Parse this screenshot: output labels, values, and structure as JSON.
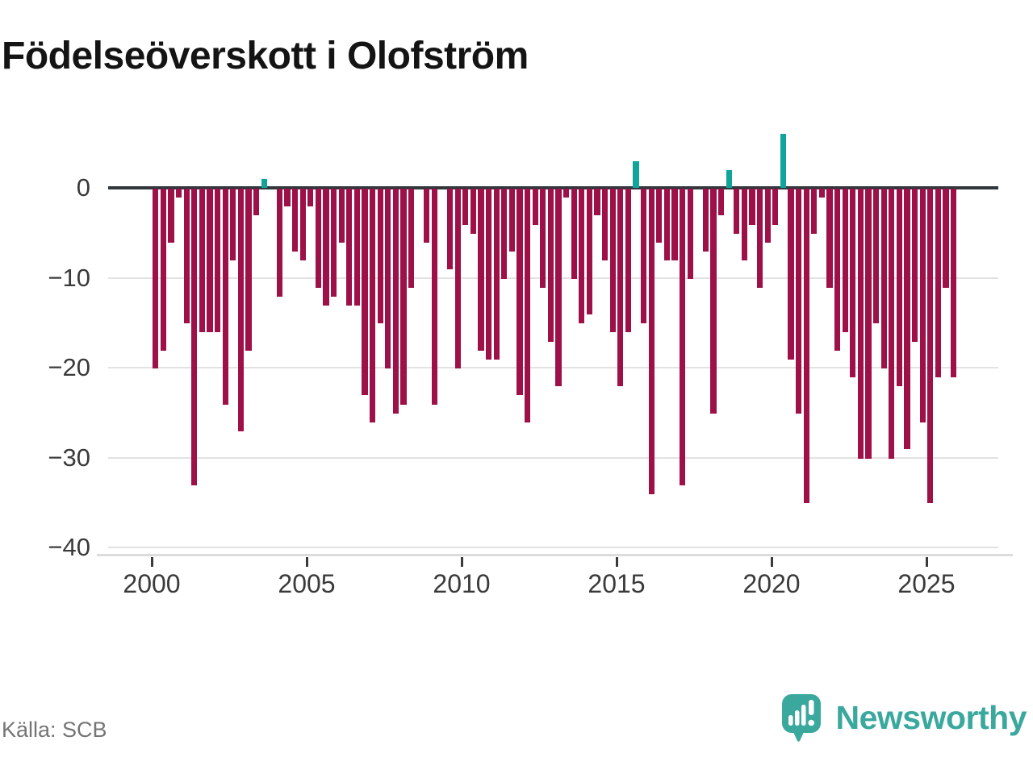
{
  "title": "Födelseöverskott i Olofström",
  "source": "Källa: SCB",
  "brand": {
    "name": "Newsworthy"
  },
  "colors": {
    "bar_negative": "#9e1148",
    "bar_positive": "#10a49a",
    "zero_axis": "#32373c",
    "gridline": "#e2e2e2",
    "axis_text": "#3a3a3a",
    "source_text": "#757575",
    "brand_teal": "#3ba89e",
    "title_text": "#141414"
  },
  "chart_data": {
    "type": "bar",
    "title": "Födelseöverskott i Olofström",
    "frequency": "quarterly",
    "start_period": "2000Q1",
    "end_period": "2025Q4",
    "x_tick_years": [
      2000,
      2005,
      2010,
      2015,
      2020,
      2025
    ],
    "x_tick_labels": [
      "2000",
      "2005",
      "2010",
      "2015",
      "2020",
      "2025"
    ],
    "y_tick_values": [
      0,
      -10,
      -20,
      -30,
      -40
    ],
    "y_tick_labels": [
      "0",
      "−10",
      "−20",
      "−30",
      "−40"
    ],
    "ylim": [
      -40,
      7
    ],
    "grid": "horizontal",
    "legend": "none",
    "series_note": "negative quarters maroon, positive quarters teal, zero quarters no bar",
    "values": [
      -20,
      -18,
      -6,
      -1,
      -15,
      -33,
      -16,
      -16,
      -16,
      -24,
      -8,
      -27,
      -18,
      -3,
      1,
      0,
      -12,
      -2,
      -7,
      -8,
      -2,
      -11,
      -13,
      -12,
      -6,
      -13,
      -13,
      -23,
      -26,
      -15,
      -20,
      -25,
      -24,
      -11,
      0,
      -6,
      -24,
      0,
      -9,
      -20,
      -4,
      -5,
      -18,
      -19,
      -19,
      -10,
      -7,
      -23,
      -26,
      -4,
      -11,
      -17,
      -22,
      -1,
      -10,
      -15,
      -14,
      -3,
      -8,
      -16,
      -22,
      -16,
      3,
      -15,
      -34,
      -6,
      -8,
      -8,
      -33,
      -10,
      0,
      -7,
      -25,
      -3,
      2,
      -5,
      -8,
      -4,
      -11,
      -6,
      -4,
      6,
      -19,
      -25,
      -35,
      -5,
      -1,
      -11,
      -18,
      -16,
      -21,
      -30,
      -30,
      -15,
      -20,
      -30,
      -22,
      -29,
      -17,
      -26,
      -35,
      -21,
      -11,
      -21
    ]
  }
}
